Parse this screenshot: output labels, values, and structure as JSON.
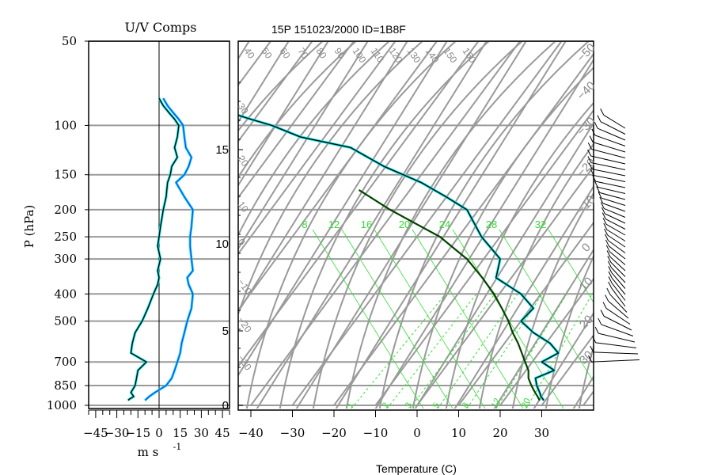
{
  "header": {
    "title": "15P 151023/2000 ID=1B8F"
  },
  "chart_data": [
    {
      "type": "line",
      "title": "U/V Comps",
      "xlabel_text": "m s",
      "xlabel_exp": "-1",
      "ylabel": "P (hPa)",
      "xlim": [
        -50,
        50
      ],
      "xticks": [
        -45,
        -30,
        -15,
        0,
        15,
        30,
        45
      ],
      "xtick_labels": [
        "−45",
        "−30",
        "−15",
        "0",
        "15",
        "30",
        "45"
      ],
      "y_scale": "log",
      "ylim": [
        1000,
        50
      ],
      "ytick_labels": [
        "50",
        "100",
        "150",
        "200",
        "250",
        "300",
        "400",
        "500",
        "700",
        "850",
        "1000"
      ],
      "ytick_values": [
        50,
        100,
        150,
        200,
        250,
        300,
        400,
        500,
        700,
        850,
        1000
      ],
      "grid": true,
      "colors": {
        "u": "#000000",
        "v": "#1f3cff",
        "overlay": "#00e0e0",
        "grid": "#9a9a9a"
      },
      "series": [
        {
          "key": "u",
          "p": [
            960,
            950,
            930,
            900,
            850,
            800,
            750,
            700,
            650,
            600,
            550,
            500,
            450,
            400,
            370,
            350,
            330,
            300,
            270,
            250,
            230,
            200,
            180,
            160,
            150,
            140,
            130,
            120,
            110,
            100,
            95,
            90,
            85,
            80
          ],
          "values": [
            -22,
            -21,
            -18,
            -20,
            -17,
            -16,
            -15,
            -9,
            -20,
            -19,
            -17,
            -12,
            -8,
            -4,
            -1,
            0,
            -1,
            1,
            -1,
            0,
            1,
            3,
            5,
            6,
            8,
            9,
            13,
            11,
            13,
            14,
            11,
            7,
            3,
            0
          ]
        },
        {
          "key": "v",
          "p": [
            960,
            950,
            930,
            900,
            850,
            800,
            750,
            700,
            650,
            600,
            550,
            500,
            450,
            400,
            370,
            350,
            330,
            300,
            270,
            250,
            230,
            200,
            180,
            160,
            150,
            140,
            130,
            120,
            110,
            100,
            95,
            90,
            85,
            80
          ],
          "values": [
            -10,
            -9,
            -7,
            -3,
            5,
            9,
            11,
            13,
            15,
            16,
            18,
            20,
            23,
            24,
            21,
            20,
            24,
            23,
            22,
            22,
            23,
            24,
            18,
            12,
            18,
            21,
            23,
            19,
            18,
            17,
            14,
            10,
            6,
            3
          ]
        }
      ]
    },
    {
      "type": "line",
      "title": "",
      "xlabel": "Temperature (C)",
      "xlim": [
        -43,
        42
      ],
      "xticks": [
        -40,
        -30,
        -20,
        -10,
        0,
        10,
        20,
        30
      ],
      "xtick_labels": [
        "−40",
        "−30",
        "−20",
        "−10",
        "0",
        "10",
        "20",
        "30"
      ],
      "y2_label_ticks": [
        "0",
        "5",
        "10",
        "15"
      ],
      "y2_label_heights_km": [
        0,
        5,
        10,
        15
      ],
      "dry_adiabat_labels": [
        "−50",
        "−40",
        "−30",
        "−20",
        "−10",
        "0",
        "10",
        "20",
        "30"
      ],
      "theta_labels": [
        "40",
        "50",
        "60",
        "70",
        "80",
        "90",
        "100",
        "110",
        "120",
        "130",
        "140",
        "150",
        "160"
      ],
      "theta_left_labels": [
        "30",
        "20",
        "10",
        "0",
        "−10",
        "−20",
        "−30",
        "−40"
      ],
      "mixing_ratio_labels": [
        "8",
        "12",
        "16",
        "20",
        "24",
        "28",
        "32"
      ],
      "mixing_ratio_bottom_labels": [
        "1",
        "2",
        "3",
        "5",
        "8",
        "12",
        "20"
      ],
      "y_scale": "log",
      "ylim": [
        1000,
        50
      ],
      "grid": true,
      "colors": {
        "temperature": "#000000",
        "dewpoint_overlay": "#00e0e0",
        "parcel": "#004400",
        "green_lines": "#33dd33",
        "grid": "#9a9a9a"
      },
      "series": [
        {
          "key": "temperature",
          "p": [
            960,
            930,
            900,
            850,
            800,
            750,
            700,
            650,
            600,
            550,
            500,
            450,
            400,
            350,
            300,
            250,
            200,
            180,
            160,
            140,
            120,
            110,
            100,
            95,
            90,
            85,
            80,
            75
          ],
          "values": [
            30.5,
            29.8,
            29.5,
            28.8,
            28.5,
            33,
            30,
            34,
            32,
            28,
            25,
            28,
            25,
            19,
            20,
            15.5,
            12,
            7,
            1,
            -8,
            -16,
            -28,
            -35,
            -40,
            -45,
            -48,
            -49,
            -50
          ]
        },
        {
          "key": "parcel",
          "p": [
            960,
            930,
            900,
            850,
            800,
            750,
            700,
            650,
            600,
            550,
            500,
            450,
            400,
            350,
            300,
            250,
            200,
            170
          ],
          "values": [
            29.5,
            29.0,
            28.4,
            27.5,
            26.8,
            26.8,
            26.0,
            25.2,
            24.3,
            23.0,
            22.0,
            20.4,
            18.5,
            15.7,
            12.0,
            5.5,
            -6.5,
            -14
          ]
        }
      ]
    }
  ]
}
